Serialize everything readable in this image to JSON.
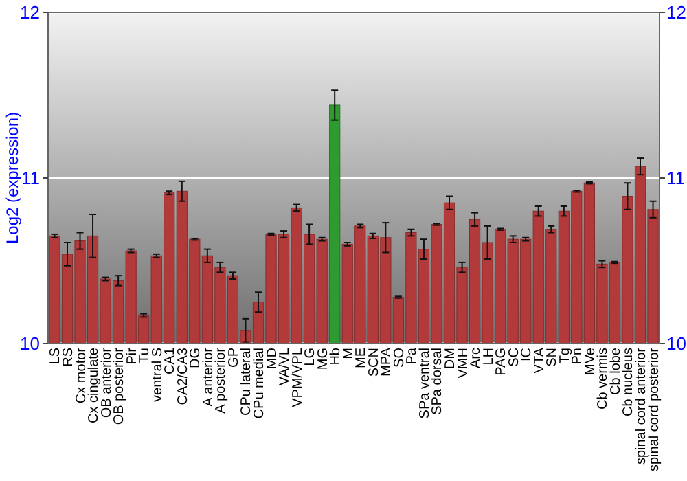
{
  "chart_data": {
    "type": "bar",
    "ylabel": "Log2 (expression)",
    "categories": [
      "LS",
      "RS",
      "Cx motor",
      "Cx cingulate",
      "OB anterior",
      "OB posterior",
      "Pir",
      "Tu",
      "ventral S",
      "CA1",
      "CA2/CA3",
      "DG",
      "A anterior",
      "A posterior",
      "GP",
      "CPu lateral",
      "CPu medial",
      "MD",
      "VA/VL",
      "VPM/VPL",
      "LG",
      "MG",
      "Hb",
      "M",
      "ME",
      "SCN",
      "MPA",
      "SO",
      "Pa",
      "SPa ventral",
      "SPa dorsal",
      "DM",
      "VMH",
      "Arc",
      "LH",
      "PAG",
      "SC",
      "IC",
      "VTA",
      "SN",
      "Tg",
      "Pn",
      "MVe",
      "Cb vermis",
      "Cb lobe",
      "Cb nucleus",
      "spinal cord anterior",
      "spinal cord posterior"
    ],
    "values": [
      10.65,
      10.54,
      10.62,
      10.65,
      10.39,
      10.38,
      10.56,
      10.17,
      10.53,
      10.91,
      10.92,
      10.63,
      10.53,
      10.46,
      10.41,
      10.08,
      10.25,
      10.66,
      10.66,
      10.82,
      10.66,
      10.63,
      11.44,
      10.6,
      10.71,
      10.65,
      10.64,
      10.28,
      10.67,
      10.57,
      10.72,
      10.85,
      10.46,
      10.75,
      10.61,
      10.69,
      10.63,
      10.63,
      10.8,
      10.69,
      10.8,
      10.92,
      10.97,
      10.48,
      10.49,
      10.89,
      11.07,
      10.81
    ],
    "errors": [
      0.01,
      0.07,
      0.05,
      0.13,
      0.01,
      0.03,
      0.01,
      0.01,
      0.01,
      0.01,
      0.06,
      0.005,
      0.04,
      0.03,
      0.02,
      0.07,
      0.06,
      0.005,
      0.02,
      0.02,
      0.06,
      0.01,
      0.09,
      0.01,
      0.01,
      0.015,
      0.09,
      0.005,
      0.02,
      0.06,
      0.005,
      0.04,
      0.03,
      0.04,
      0.1,
      0.005,
      0.02,
      0.01,
      0.03,
      0.02,
      0.03,
      0.005,
      0.005,
      0.02,
      0.005,
      0.08,
      0.05,
      0.05
    ],
    "colors": [
      "#b33a3a",
      "#b33a3a",
      "#b33a3a",
      "#b33a3a",
      "#b33a3a",
      "#b33a3a",
      "#b33a3a",
      "#b33a3a",
      "#b33a3a",
      "#b33a3a",
      "#b33a3a",
      "#b33a3a",
      "#b33a3a",
      "#b33a3a",
      "#b33a3a",
      "#b33a3a",
      "#b33a3a",
      "#b33a3a",
      "#b33a3a",
      "#b33a3a",
      "#b33a3a",
      "#b33a3a",
      "#2f9a2f",
      "#b33a3a",
      "#b33a3a",
      "#b33a3a",
      "#b33a3a",
      "#b33a3a",
      "#b33a3a",
      "#b33a3a",
      "#b33a3a",
      "#b33a3a",
      "#b33a3a",
      "#b33a3a",
      "#b33a3a",
      "#b33a3a",
      "#b33a3a",
      "#b33a3a",
      "#b33a3a",
      "#b33a3a",
      "#b33a3a",
      "#b33a3a",
      "#b33a3a",
      "#b33a3a",
      "#b33a3a",
      "#b33a3a",
      "#b33a3a",
      "#b33a3a"
    ],
    "ylim": [
      10,
      12
    ],
    "yticks": [
      10,
      11,
      12
    ],
    "y2lim": [
      10,
      12
    ],
    "y2ticks": [
      10,
      11,
      12
    ],
    "grid": "y"
  }
}
